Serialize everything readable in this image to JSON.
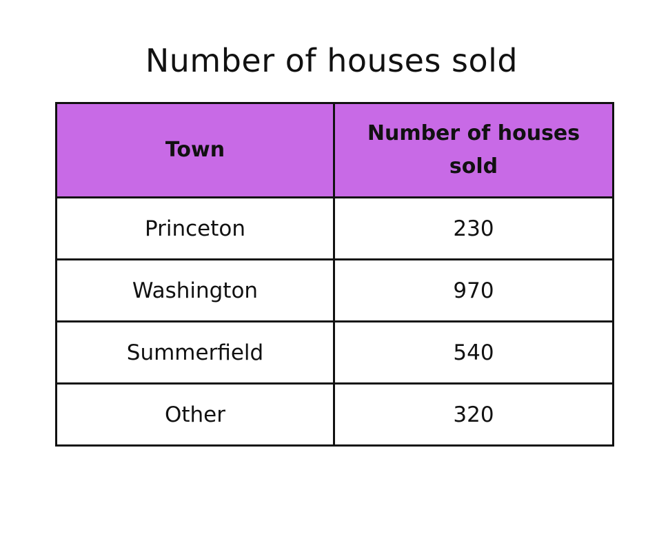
{
  "title": "Number of houses sold",
  "colors": {
    "header_bg": "#c86ae6",
    "border": "#111111",
    "text": "#111111",
    "cell_bg": "#ffffff"
  },
  "table": {
    "headers": [
      "Town",
      "Number of houses sold"
    ],
    "rows": [
      [
        "Princeton",
        "230"
      ],
      [
        "Washington",
        "970"
      ],
      [
        "Summerfield",
        "540"
      ],
      [
        "Other",
        "320"
      ]
    ]
  },
  "chart_data": {
    "type": "table",
    "title": "Number of houses sold",
    "columns": [
      "Town",
      "Number of houses sold"
    ],
    "categories": [
      "Princeton",
      "Washington",
      "Summerfield",
      "Other"
    ],
    "values": [
      230,
      970,
      540,
      320
    ]
  }
}
